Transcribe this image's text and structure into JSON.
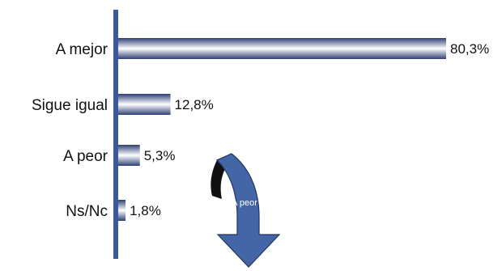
{
  "chart_data": {
    "type": "bar",
    "orientation": "horizontal",
    "categories": [
      "A mejor",
      "Sigue igual",
      "A peor",
      "Ns/Nc"
    ],
    "values": [
      80.3,
      12.8,
      5.3,
      1.8
    ],
    "value_labels": [
      "80,3%",
      "12,8%",
      "5,3%",
      "1,8%"
    ],
    "xlim": [
      0,
      80.3
    ],
    "title": "",
    "xlabel": "",
    "ylabel": "",
    "grid": false,
    "legend": "none",
    "annotation": {
      "text": "A peor",
      "shape": "curved-down-arrow"
    },
    "colors": {
      "axis": "#3a5a9a",
      "bar_dark": "#2e3f74",
      "bar_light": "#ffffff",
      "arrow_fill": "#4466a6",
      "arrow_stroke": "#22335f"
    }
  }
}
